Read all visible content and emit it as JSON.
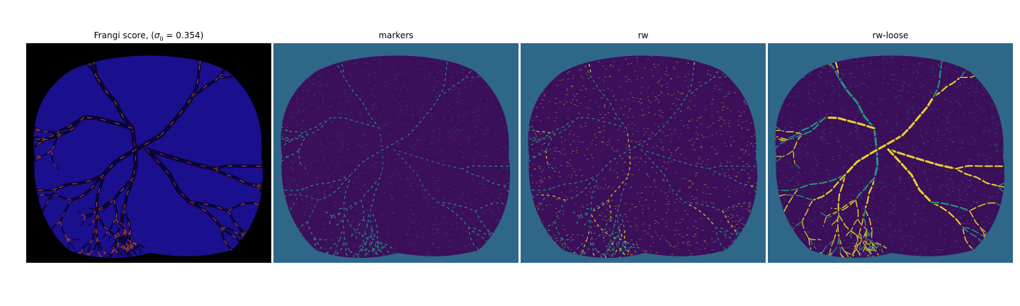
{
  "panels": [
    {
      "id": "frangi",
      "title_prefix": "Frangi score, (",
      "title_symbol": "σ",
      "title_sub": "0",
      "title_suffix": " = 0.354)",
      "background": "#000000",
      "tissue": "#1a0f8c",
      "vessel": "#0a0533",
      "highlight": "#ff6a2a",
      "highlight_alt": "#c0398a"
    },
    {
      "id": "markers",
      "title": "markers",
      "background": "#2f6789",
      "tissue": "#3b0f5a",
      "vessel": "#3b0f5a",
      "highlight": "#22a387",
      "highlight_alt": "#2a788e"
    },
    {
      "id": "rw",
      "title": "rw",
      "background": "#2f6789",
      "tissue": "#3b0f5a",
      "vessel": "#3b0f5a",
      "highlight": "#22a387",
      "highlight_alt": "#fde725"
    },
    {
      "id": "rw-loose",
      "title": "rw-loose",
      "background": "#2f6789",
      "tissue": "#3b0f5a",
      "vessel": "#3b0f5a",
      "highlight": "#fde725",
      "highlight_alt": "#22a387"
    }
  ]
}
